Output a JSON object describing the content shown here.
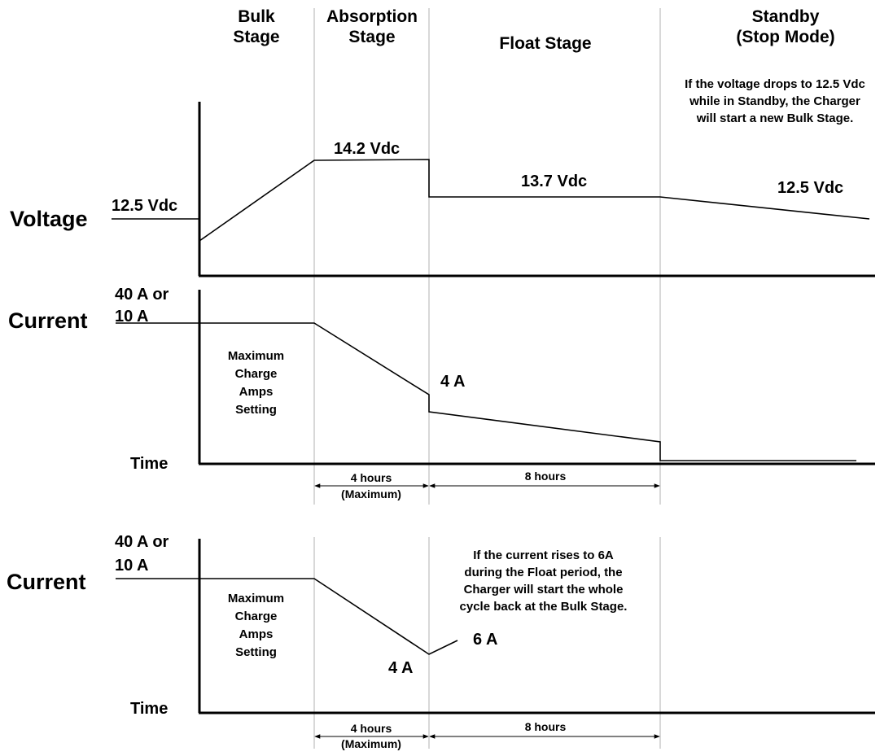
{
  "stages": {
    "bulk": "Bulk\nStage",
    "absorption": "Absorption\nStage",
    "float": "Float Stage",
    "standby": "Standby\n(Stop Mode)"
  },
  "standby_note": "If the voltage drops to 12.5 Vdc\nwhile in Standby, the Charger\nwill start a new Bulk Stage.",
  "voltage_panel": {
    "axis_label": "Voltage",
    "start_value": "12.5  Vdc",
    "absorption_value": "14.2 Vdc",
    "float_value": "13.7 Vdc",
    "standby_value": "12.5  Vdc"
  },
  "current_panel_1": {
    "axis_label": "Current",
    "max_label": "40 A or\n10 A",
    "setting_label": "Maximum\nCharge\nAmps\nSetting",
    "float_start_value": "4 A",
    "time_label": "Time",
    "duration_absorption": "4  hours",
    "duration_absorption_note": "(Maximum)",
    "duration_float": "8  hours"
  },
  "current_panel_2": {
    "axis_label": "Current",
    "max_label": "40 A or\n10 A",
    "setting_label": "Maximum\nCharge\nAmps\nSetting",
    "low_value": "4 A",
    "rise_value": "6 A",
    "note": "If the current rises to 6A\nduring the Float period, the\nCharger will start the whole\ncycle back at the Bulk Stage.",
    "time_label": "Time",
    "duration_absorption": "4  hours",
    "duration_absorption_note": "(Maximum)",
    "duration_float": "8  hours"
  },
  "colors": {
    "line": "#000000",
    "divider": "#b0b0b0",
    "background": "#ffffff"
  }
}
